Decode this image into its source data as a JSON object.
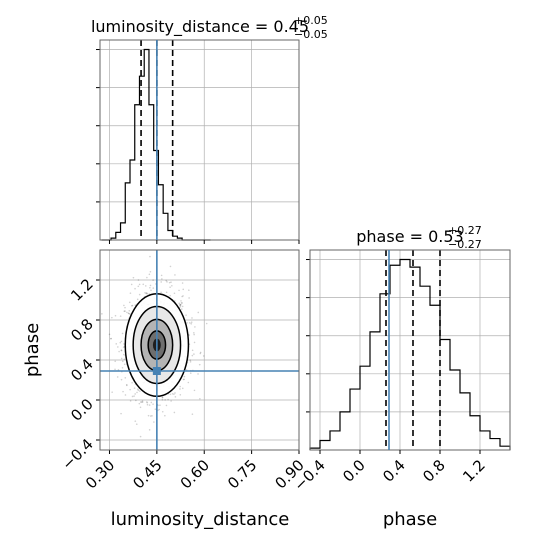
{
  "chart_data": {
    "type": "corner",
    "parameters": [
      "luminosity_distance",
      "phase"
    ],
    "truths": {
      "luminosity_distance": 0.45,
      "phase": 0.29
    },
    "panels": [
      {
        "id": "luminosity_distance",
        "type": "histogram",
        "title": {
          "name": "luminosity_distance",
          "median": "0.45",
          "plus": "+0.05",
          "minus": "−0.05"
        },
        "xlim": [
          0.27,
          0.9
        ],
        "quantiles": [
          0.4,
          0.45,
          0.5
        ],
        "bin_edges": [
          0.275,
          0.29,
          0.305,
          0.32,
          0.335,
          0.35,
          0.365,
          0.38,
          0.395,
          0.41,
          0.425,
          0.44,
          0.455,
          0.47,
          0.485,
          0.5,
          0.515,
          0.53,
          0.545,
          0.56,
          0.575,
          0.59,
          0.605,
          0.62
        ],
        "counts": [
          0,
          0,
          1,
          4,
          9,
          30,
          42,
          71,
          86,
          100,
          71,
          47,
          29,
          14,
          5,
          2,
          1,
          0,
          0,
          0,
          0,
          0,
          0
        ]
      },
      {
        "id": "joint",
        "type": "2d-density",
        "xlabel": "luminosity_distance",
        "ylabel": "phase",
        "xlim": [
          0.27,
          0.9
        ],
        "ylim": [
          -0.5,
          1.5
        ],
        "xticks": [
          "0.30",
          "0.45",
          "0.60",
          "0.75",
          "0.90"
        ],
        "xtick_values": [
          0.3,
          0.45,
          0.6,
          0.75,
          0.9
        ],
        "yticks": [
          "−0.4",
          "0.0",
          "0.4",
          "0.8",
          "1.2"
        ],
        "ytick_values": [
          -0.4,
          0.0,
          0.4,
          0.8,
          1.2
        ],
        "center": [
          0.45,
          0.55
        ],
        "spread": [
          0.05,
          0.27
        ]
      },
      {
        "id": "phase",
        "type": "histogram",
        "title": {
          "name": "phase",
          "median": "0.53",
          "plus": "+0.27",
          "minus": "−0.27"
        },
        "xlabel": "phase",
        "xlim": [
          -0.5,
          1.5
        ],
        "xticks": [
          "−0.4",
          "0.0",
          "0.4",
          "0.8",
          "1.2"
        ],
        "xtick_values": [
          -0.4,
          0.0,
          0.4,
          0.8,
          1.2
        ],
        "quantiles": [
          0.26,
          0.53,
          0.8
        ],
        "bin_edges": [
          -0.5,
          -0.4,
          -0.3,
          -0.2,
          -0.1,
          0.0,
          0.1,
          0.2,
          0.3,
          0.4,
          0.5,
          0.6,
          0.7,
          0.8,
          0.9,
          1.0,
          1.1,
          1.2,
          1.3,
          1.4,
          1.5
        ],
        "counts": [
          1,
          5,
          10,
          20,
          32,
          44,
          62,
          82,
          97,
          100,
          96,
          86,
          76,
          58,
          42,
          30,
          18,
          10,
          6,
          2
        ]
      }
    ],
    "colors": {
      "truth": "#4682b4",
      "hist": "#000000",
      "grid": "#b0b0b0"
    }
  }
}
